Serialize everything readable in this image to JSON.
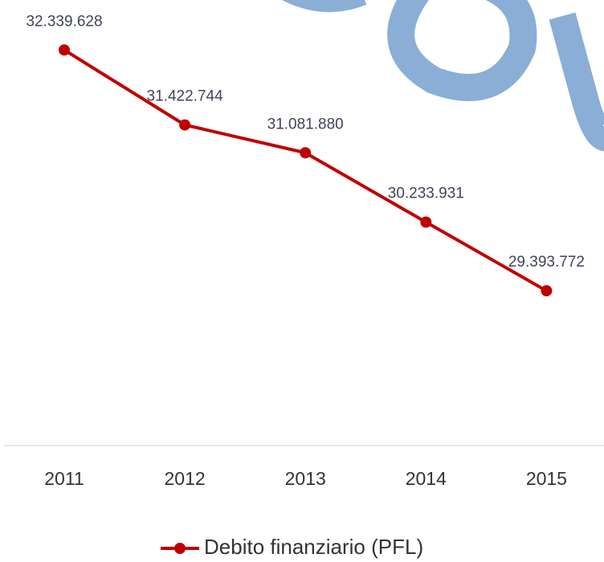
{
  "chart_data": {
    "type": "line",
    "categories": [
      "2011",
      "2012",
      "2013",
      "2014",
      "2015"
    ],
    "series": [
      {
        "name": "Debito finanziario (PFL)",
        "color": "#c00000",
        "values": [
          32339628,
          31422744,
          31081880,
          30233931,
          29393772
        ],
        "value_labels": [
          "32.339.628",
          "31.422.744",
          "31.081.880",
          "30.233.931",
          "29.393.772"
        ]
      }
    ],
    "ylim": [
      27500000,
      33000000
    ]
  }
}
